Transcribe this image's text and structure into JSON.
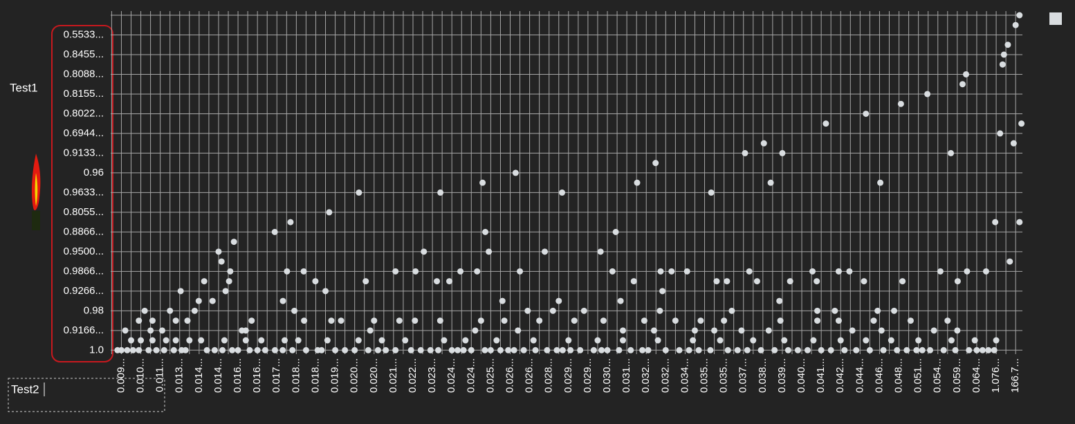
{
  "labels": {
    "left": "Test1",
    "input": "Test2"
  },
  "chart_data": {
    "type": "scatter",
    "categories": [
      "0.009...",
      "0.010...",
      "0.011...",
      "0.013...",
      "0.014...",
      "0.014...",
      "0.016...",
      "0.016...",
      "0.017...",
      "0.018...",
      "0.018...",
      "0.019...",
      "0.020...",
      "0.020...",
      "0.021...",
      "0.022...",
      "0.023...",
      "0.024...",
      "0.024...",
      "0.025...",
      "0.026...",
      "0.026...",
      "0.028...",
      "0.029...",
      "0.029...",
      "0.030...",
      "0.031...",
      "0.032...",
      "0.032...",
      "0.034...",
      "0.035...",
      "0.035...",
      "0.037...",
      "0.038...",
      "0.039...",
      "0.040...",
      "0.041...",
      "0.042...",
      "0.044...",
      "0.046...",
      "0.048...",
      "0.051...",
      "0.054...",
      "0.059...",
      "0.064...",
      "1.076...",
      "166.7..."
    ],
    "y_categories": [
      "1.0",
      "0.9166...",
      "0.98",
      "0.9266...",
      "0.9866...",
      "0.9500...",
      "0.8866...",
      "0.8055...",
      "0.9633...",
      "0.96",
      "0.9133...",
      "0.6944...",
      "0.8022...",
      "0.8155...",
      "0.8088...",
      "0.8455...",
      "0.5533..."
    ],
    "xlim": [
      -0.55,
      46.35
    ],
    "ylim": [
      -0.2,
      17
    ],
    "grid": true,
    "series": [
      {
        "color": "#d9dde0",
        "x": [
          -0.2,
          0,
          0.3,
          0.6,
          0.9,
          1.4,
          1.8,
          2.2,
          2.7,
          3.1,
          3.3,
          4.4,
          4.8,
          5.2,
          5.7,
          6.0,
          6.6,
          7.0,
          7.4,
          7.9,
          8.3,
          8.8,
          9.5,
          10.1,
          10.3,
          11.0,
          11.5,
          12.0,
          12.7,
          13.2,
          13.6,
          14.1,
          14.9,
          15.4,
          15.9,
          16.3,
          17.0,
          17.3,
          17.6,
          18.0,
          18.7,
          19.0,
          19.5,
          19.9,
          20.2,
          20.7,
          21.3,
          21.9,
          22.4,
          22.7,
          23.1,
          23.6,
          24.3,
          24.7,
          25.0,
          25.6,
          26.2,
          26.8,
          27.1,
          28.0,
          28.7,
          29.2,
          29.7,
          30.3,
          31.2,
          31.7,
          32.2,
          32.9,
          33.6,
          34.3,
          34.8,
          35.3,
          36.0,
          36.5,
          37.2,
          37.8,
          38.5,
          39.2,
          39.9,
          40.4,
          40.9,
          41.2,
          41.6,
          42.3,
          42.9,
          43.6,
          44.0,
          44.3,
          44.6,
          44.9
        ],
        "values": [
          0,
          0,
          0,
          0,
          0,
          0,
          0,
          0,
          0,
          0,
          0,
          0,
          0,
          0,
          0,
          0,
          0,
          0,
          0,
          0,
          0,
          0,
          0,
          0,
          0,
          0,
          0,
          0,
          0,
          0,
          0,
          0,
          0,
          0,
          0,
          0,
          0,
          0,
          0,
          0,
          0,
          0,
          0,
          0,
          0,
          0,
          0,
          0,
          0,
          0,
          0,
          0,
          0,
          0,
          0,
          0,
          0,
          0,
          0,
          0,
          0,
          0,
          0,
          0,
          0,
          0,
          0,
          0,
          0,
          0,
          0,
          0,
          0,
          0,
          0,
          0,
          0,
          0,
          0,
          0,
          0,
          0,
          0,
          0,
          0,
          0,
          0,
          0,
          0,
          0
        ]
      },
      {
        "color": "#d9dde0",
        "x": [
          0.5,
          1,
          1.6,
          2.3,
          2.8,
          3.5,
          4.1,
          5.3,
          6.4,
          7.2,
          8.4,
          9.1,
          10.6,
          12.2,
          13.4,
          14.6,
          16.6,
          17.7,
          19.3,
          21.2,
          23,
          24.5,
          25.8,
          27.6,
          29.4,
          30.8,
          32.5,
          34.1,
          35.6,
          37,
          38.3,
          39.6,
          41,
          42.7,
          43.9,
          45
        ],
        "values": [
          0.5,
          0.5,
          0.5,
          0.5,
          0.5,
          0.5,
          0.5,
          0.5,
          0.5,
          0.5,
          0.5,
          0.5,
          0.5,
          0.5,
          0.5,
          0.5,
          0.5,
          0.5,
          0.5,
          0.5,
          0.5,
          0.5,
          0.5,
          0.5,
          0.5,
          0.5,
          0.5,
          0.5,
          0.5,
          0.5,
          0.5,
          0.5,
          0.5,
          0.5,
          0.5,
          0.5
        ]
      },
      {
        "color": "#d9dde0",
        "x": [
          0.2,
          1.5,
          2.1,
          6.2,
          6.4,
          12.8,
          18.2,
          20.4,
          25.8,
          27.4,
          29.5,
          30.5,
          31.9,
          33.3,
          37.6,
          39.1,
          41.8,
          43
        ],
        "values": [
          1,
          1,
          1,
          1,
          1,
          1,
          1,
          1,
          1,
          1,
          1,
          1,
          1,
          1,
          1,
          1,
          1,
          1
        ]
      },
      {
        "color": "#d9dde0",
        "x": [
          0.9,
          1.6,
          2.8,
          3.4,
          6.7,
          9.4,
          10.8,
          11.3,
          13,
          14.3,
          15.1,
          16.4,
          18.5,
          19.7,
          21.5,
          23.3,
          24.8,
          26.9,
          28.5,
          29.8,
          31,
          33.9,
          35.8,
          36.9,
          38.7,
          40.6,
          42.5
        ],
        "values": [
          1.5,
          1.5,
          1.5,
          1.5,
          1.5,
          1.5,
          1.5,
          1.5,
          1.5,
          1.5,
          1.5,
          1.5,
          1.5,
          1.5,
          1.5,
          1.5,
          1.5,
          1.5,
          1.5,
          1.5,
          1.5,
          1.5,
          1.5,
          1.5,
          1.5,
          1.5,
          1.5
        ]
      },
      {
        "color": "#d9dde0",
        "x": [
          1.2,
          2.5,
          8.9,
          20.9,
          22.2,
          23.8,
          27.7,
          31.4,
          35.8,
          36.7,
          38.9
        ],
        "values": [
          2,
          2,
          2,
          2,
          2,
          2,
          2,
          2,
          2,
          2,
          2
        ]
      },
      {
        "color": "#d9dde0",
        "x": [
          5.15,
          4.26,
          3.98,
          3.77,
          3.05,
          5.79,
          5.0,
          5.6,
          5.54,
          5.36,
          4.69,
          7.89,
          8.7,
          8.31,
          8.52,
          9.38,
          9.98,
          10.5,
          10.69,
          12.22,
          12.57,
          14.1,
          15.56,
          15.13,
          16.41,
          16.23,
          16.87,
          17.44,
          18.3,
          18.58,
          18.72,
          18.9,
          20.28,
          20.5,
          19.6,
          21.78,
          22.67,
          22.5,
          24.65,
          25.43,
          25.26,
          25.68,
          26.36,
          26.53,
          27.48,
          27.83,
          27.74,
          28.3,
          29.1,
          30.34,
          30.62,
          31.15,
          32.08,
          32.3,
          32.7,
          33.05,
          33.4,
          34,
          33.85,
          34.4,
          35.55,
          35.77,
          36.24,
          36.9,
          37.45,
          38.2,
          38.3,
          39.04,
          40.1,
          40.18,
          39.75,
          41.46,
          42.13,
          42.67,
          43.02,
          43.27,
          43.45,
          43.5,
          44.48,
          44.95,
          45.2,
          45.33,
          45.4,
          45.6,
          45.7,
          45.9,
          46.0,
          46.2,
          46.3,
          46.2
        ],
        "values": [
          4.5,
          3.5,
          2.5,
          2,
          3,
          5.5,
          5,
          4,
          3.5,
          3,
          2.5,
          6,
          6.5,
          2.5,
          4,
          4,
          3.5,
          3,
          7,
          8,
          3.5,
          4,
          5,
          4,
          8,
          3.5,
          3.5,
          4,
          4,
          8.5,
          6,
          5,
          9,
          4,
          2.5,
          5,
          8,
          2.5,
          5,
          6,
          4,
          2.5,
          3.5,
          8.5,
          9.5,
          3,
          4,
          4,
          4,
          8,
          3.5,
          3.5,
          10,
          4,
          3.5,
          10.5,
          8.5,
          10,
          2.5,
          3.5,
          4,
          3.5,
          11.5,
          4,
          4,
          3.5,
          12,
          8.5,
          12.5,
          3.5,
          2,
          13,
          4,
          10,
          3.5,
          13.5,
          14,
          4,
          4,
          6.5,
          11,
          14.5,
          15,
          15.5,
          4.5,
          10.5,
          16.5,
          17,
          11.5,
          6.5
        ]
      }
    ]
  }
}
